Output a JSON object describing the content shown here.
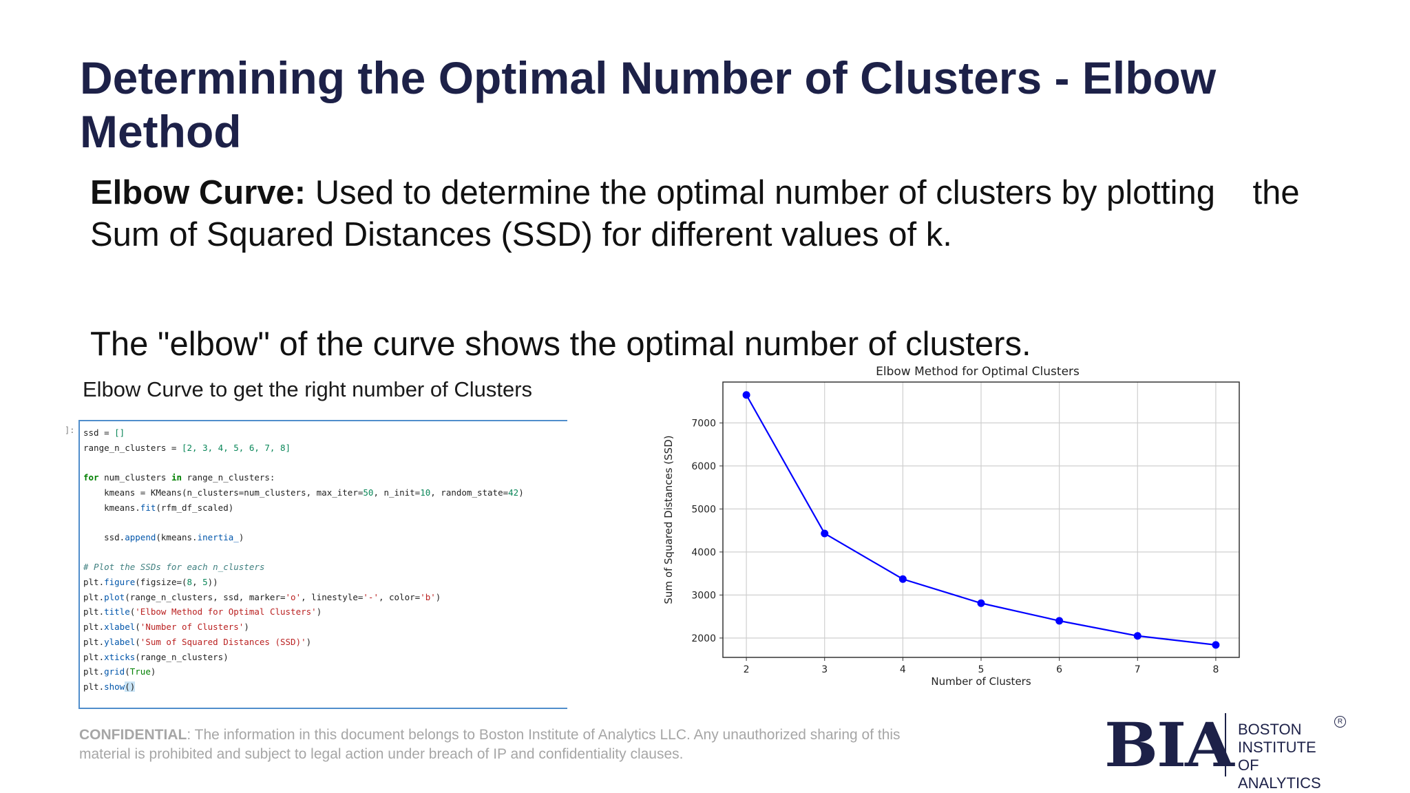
{
  "slide": {
    "title": "Determining the Optimal Number of Clusters - Elbow Method",
    "paragraph1": {
      "bold": "Elbow Curve:",
      "text": " Used to determine the optimal number of clusters by plotting    the Sum of Squared Distances (SSD) for different values of k."
    },
    "paragraph2": "The \"elbow\" of the curve shows the optimal number of clusters."
  },
  "code_panel": {
    "heading": "Elbow Curve to get the right number of Clusters",
    "prompt": "]:",
    "lines": [
      "ssd = []",
      "range_n_clusters = [2, 3, 4, 5, 6, 7, 8]",
      "",
      "for num_clusters in range_n_clusters:",
      "    kmeans = KMeans(n_clusters=num_clusters, max_iter=50, n_init=10, random_state=42)",
      "    kmeans.fit(rfm_df_scaled)",
      "",
      "    ssd.append(kmeans.inertia_)",
      "",
      "# Plot the SSDs for each n_clusters",
      "plt.figure(figsize=(8, 5))",
      "plt.plot(range_n_clusters, ssd, marker='o', linestyle='-', color='b')",
      "plt.title('Elbow Method for Optimal Clusters')",
      "plt.xlabel('Number of Clusters')",
      "plt.ylabel('Sum of Squared Distances (SSD)')",
      "plt.xticks(range_n_clusters)",
      "plt.grid(True)",
      "plt.show()"
    ]
  },
  "chart_data": {
    "type": "line",
    "title": "Elbow Method for Optimal Clusters",
    "xlabel": "Number of Clusters",
    "ylabel": "Sum of Squared Distances (SSD)",
    "x": [
      2,
      3,
      4,
      5,
      6,
      7,
      8
    ],
    "series": [
      {
        "values": [
          7650,
          4430,
          3370,
          2810,
          2400,
          2050,
          1840
        ],
        "color": "#0000ff",
        "marker": "o",
        "linestyle": "-"
      }
    ],
    "xticks": [
      2,
      3,
      4,
      5,
      6,
      7,
      8
    ],
    "yticks": [
      2000,
      3000,
      4000,
      5000,
      6000,
      7000
    ],
    "xlim": [
      1.7,
      8.3
    ],
    "ylim": [
      1550,
      7950
    ],
    "grid": true
  },
  "footer": {
    "label": "CONFIDENTIAL",
    "text": ": The information in this document belongs to Boston Institute of Analytics LLC. Any unauthorized sharing of this material is prohibited and subject to legal action under breach of IP and confidentiality clauses."
  },
  "logo": {
    "mark": "BIA",
    "name_lines": [
      "BOSTON",
      "INSTITUTE OF",
      "ANALYTICS"
    ],
    "registered": "R"
  },
  "colors": {
    "title": "#1d2148",
    "body": "#111111",
    "footer": "#a6a6a6",
    "code_border": "#4f8dcb",
    "chart_line": "#0000ff",
    "logo": "#1d2148"
  }
}
